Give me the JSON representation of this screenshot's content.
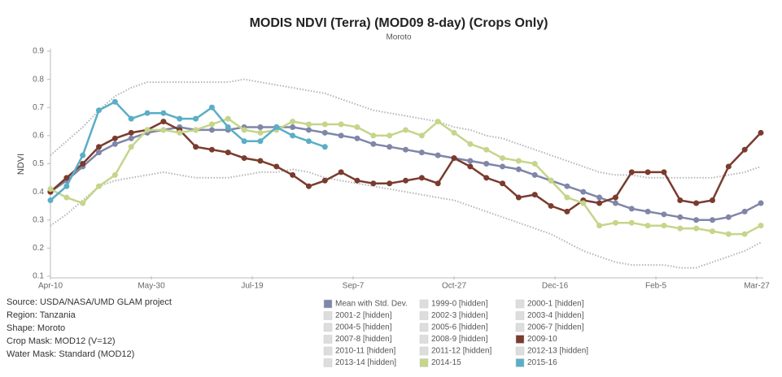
{
  "chart_data": {
    "type": "line",
    "title": "MODIS NDVI (Terra) (MOD09 8-day) (Crops Only)",
    "subtitle": "Moroto",
    "y_label": "NDVI",
    "x": [
      0,
      8,
      16,
      24,
      32,
      40,
      48,
      56,
      64,
      72,
      80,
      88,
      96,
      104,
      112,
      120,
      128,
      136,
      144,
      152,
      160,
      168,
      176,
      184,
      192,
      200,
      208,
      216,
      224,
      232,
      240,
      248,
      256,
      264,
      272,
      280,
      288,
      296,
      304,
      312,
      320,
      328,
      336,
      344,
      352
    ],
    "xlim": [
      0,
      352
    ],
    "xticks": [
      {
        "value": 0,
        "label": "Apr-10"
      },
      {
        "value": 50,
        "label": "May-30"
      },
      {
        "value": 100,
        "label": "Jul-19"
      },
      {
        "value": 150,
        "label": "Sep-7"
      },
      {
        "value": 200,
        "label": "Oct-27"
      },
      {
        "value": 250,
        "label": "Dec-16"
      },
      {
        "value": 300,
        "label": "Feb-5"
      },
      {
        "value": 350,
        "label": "Mar-27"
      }
    ],
    "ylim": [
      0.1,
      0.9
    ],
    "yticks": [
      0.1,
      0.2,
      0.3,
      0.4,
      0.5,
      0.6,
      0.7,
      0.8,
      0.9
    ],
    "series": [
      {
        "name": "Mean with Std. Dev.",
        "color": "#7f86a8",
        "std_color": "#b5b5b5",
        "values": [
          0.4,
          0.44,
          0.49,
          0.54,
          0.57,
          0.59,
          0.61,
          0.62,
          0.63,
          0.62,
          0.62,
          0.62,
          0.63,
          0.63,
          0.63,
          0.63,
          0.62,
          0.61,
          0.6,
          0.59,
          0.57,
          0.56,
          0.55,
          0.54,
          0.53,
          0.52,
          0.51,
          0.5,
          0.49,
          0.48,
          0.46,
          0.44,
          0.42,
          0.4,
          0.38,
          0.36,
          0.34,
          0.33,
          0.32,
          0.31,
          0.3,
          0.3,
          0.31,
          0.33,
          0.36
        ],
        "upper": [
          0.53,
          0.58,
          0.63,
          0.69,
          0.74,
          0.77,
          0.79,
          0.79,
          0.79,
          0.79,
          0.79,
          0.79,
          0.8,
          0.79,
          0.78,
          0.77,
          0.76,
          0.75,
          0.73,
          0.71,
          0.69,
          0.68,
          0.67,
          0.66,
          0.65,
          0.63,
          0.62,
          0.6,
          0.59,
          0.57,
          0.55,
          0.53,
          0.51,
          0.49,
          0.47,
          0.46,
          0.46,
          0.45,
          0.45,
          0.45,
          0.45,
          0.45,
          0.46,
          0.47,
          0.49
        ],
        "lower": [
          0.28,
          0.32,
          0.37,
          0.42,
          0.44,
          0.45,
          0.46,
          0.47,
          0.46,
          0.45,
          0.45,
          0.45,
          0.46,
          0.47,
          0.47,
          0.48,
          0.47,
          0.45,
          0.44,
          0.43,
          0.42,
          0.41,
          0.4,
          0.39,
          0.38,
          0.37,
          0.35,
          0.33,
          0.31,
          0.29,
          0.27,
          0.25,
          0.22,
          0.19,
          0.17,
          0.15,
          0.14,
          0.14,
          0.14,
          0.13,
          0.13,
          0.15,
          0.17,
          0.19,
          0.22
        ]
      },
      {
        "name": "1999-0 [hidden]",
        "color": "#dddddd",
        "hidden": true
      },
      {
        "name": "2000-1 [hidden]",
        "color": "#dddddd",
        "hidden": true
      },
      {
        "name": "2001-2 [hidden]",
        "color": "#dddddd",
        "hidden": true
      },
      {
        "name": "2002-3 [hidden]",
        "color": "#dddddd",
        "hidden": true
      },
      {
        "name": "2003-4 [hidden]",
        "color": "#dddddd",
        "hidden": true
      },
      {
        "name": "2004-5 [hidden]",
        "color": "#dddddd",
        "hidden": true
      },
      {
        "name": "2005-6 [hidden]",
        "color": "#dddddd",
        "hidden": true
      },
      {
        "name": "2006-7 [hidden]",
        "color": "#dddddd",
        "hidden": true
      },
      {
        "name": "2007-8 [hidden]",
        "color": "#dddddd",
        "hidden": true
      },
      {
        "name": "2008-9 [hidden]",
        "color": "#dddddd",
        "hidden": true
      },
      {
        "name": "2009-10",
        "color": "#7a3b2e",
        "values": [
          0.4,
          0.45,
          0.5,
          0.56,
          0.59,
          0.61,
          0.62,
          0.65,
          0.62,
          0.56,
          0.55,
          0.54,
          0.52,
          0.51,
          0.49,
          0.46,
          0.42,
          0.44,
          0.47,
          0.44,
          0.43,
          0.43,
          0.44,
          0.45,
          0.43,
          0.52,
          0.49,
          0.45,
          0.43,
          0.38,
          0.39,
          0.35,
          0.33,
          0.37,
          0.36,
          0.38,
          0.47,
          0.47,
          0.47,
          0.37,
          0.36,
          0.37,
          0.49,
          0.55,
          0.61
        ]
      },
      {
        "name": "2010-11 [hidden]",
        "color": "#dddddd",
        "hidden": true
      },
      {
        "name": "2011-12 [hidden]",
        "color": "#dddddd",
        "hidden": true
      },
      {
        "name": "2012-13 [hidden]",
        "color": "#dddddd",
        "hidden": true
      },
      {
        "name": "2013-14 [hidden]",
        "color": "#dddddd",
        "hidden": true
      },
      {
        "name": "2014-15",
        "color": "#c5d58a",
        "values": [
          0.41,
          0.38,
          0.36,
          0.42,
          0.46,
          0.56,
          0.62,
          0.62,
          0.61,
          0.62,
          0.64,
          0.66,
          0.62,
          0.61,
          0.62,
          0.65,
          0.64,
          0.64,
          0.64,
          0.63,
          0.6,
          0.6,
          0.62,
          0.6,
          0.65,
          0.61,
          0.57,
          0.55,
          0.52,
          0.51,
          0.5,
          0.44,
          0.38,
          0.36,
          0.28,
          0.29,
          0.29,
          0.28,
          0.28,
          0.27,
          0.27,
          0.26,
          0.25,
          0.25,
          0.28
        ]
      },
      {
        "name": "2015-16",
        "color": "#5aaec6",
        "values": [
          0.37,
          0.42,
          0.53,
          0.69,
          0.72,
          0.66,
          0.68,
          0.68,
          0.66,
          0.66,
          0.7,
          0.63,
          0.58,
          0.58,
          0.63,
          0.6,
          0.58,
          0.56,
          null,
          null,
          null,
          null,
          null,
          null,
          null,
          null,
          null,
          null,
          null,
          null,
          null,
          null,
          null,
          null,
          null,
          null,
          null,
          null,
          null,
          null,
          null,
          null,
          null,
          null,
          null
        ]
      }
    ],
    "notes": [
      "Source: USDA/NASA/UMD GLAM project",
      "Region: Tanzania",
      "Shape: Moroto",
      "Crop Mask: MOD12 (V=12)",
      "Water Mask: Standard (MOD12)"
    ]
  }
}
